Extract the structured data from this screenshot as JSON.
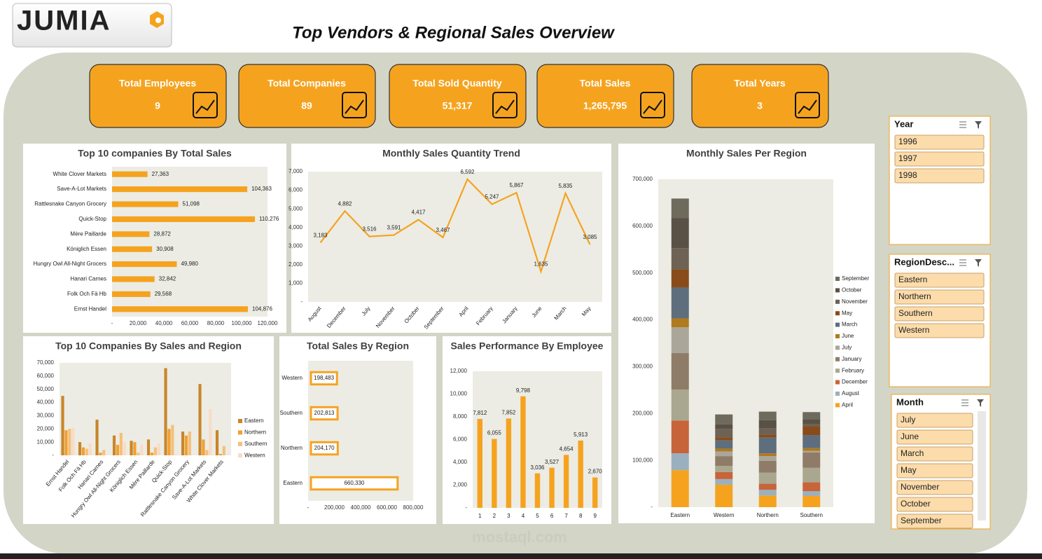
{
  "header": {
    "logo": "JUMIA",
    "title": "Top Vendors & Regional Sales Overview",
    "watermark": "mostaql.com"
  },
  "kpis": [
    {
      "label": "Total Employees",
      "value": "9"
    },
    {
      "label": "Total Companies",
      "value": "89"
    },
    {
      "label": "Total Sold Quantity",
      "value": "51,317"
    },
    {
      "label": "Total  Sales",
      "value": "1,265,795"
    },
    {
      "label": "Total Years",
      "value": "3"
    }
  ],
  "slicers": [
    {
      "title": "Year",
      "items": [
        "1996",
        "1997",
        "1998"
      ]
    },
    {
      "title": "RegionDesc...",
      "items": [
        "Eastern",
        "Northern",
        "Southern",
        "Western"
      ]
    },
    {
      "title": "Month",
      "items": [
        "July",
        "June",
        "March",
        "May",
        "November",
        "October",
        "September"
      ]
    }
  ],
  "chart_data": [
    {
      "type": "bar",
      "orientation": "horizontal",
      "title": "Top 10 companies By Total Sales",
      "color": "#f5a31f",
      "categories": [
        "White Clover Markets",
        "Save-A-Lot Markets",
        "Rattlesnake Canyon Grocery",
        "Quick-Stop",
        "Mère Paillarde",
        "Königlich Essen",
        "Hungry Owl All-Night Grocers",
        "Hanari Carnes",
        "Folk Och Fä Hb",
        "Ernst Handel"
      ],
      "values": [
        27363,
        104363,
        51098,
        110276,
        28872,
        30908,
        49980,
        32842,
        29568,
        104876
      ],
      "value_labels": [
        "27,363",
        "104,363",
        "51,098",
        "110,276",
        "28,872",
        "30,908",
        "49,980",
        "32,842",
        "29,568",
        "104,876"
      ],
      "xlim": [
        0,
        120000
      ],
      "xticks": [
        {
          "value": 0,
          "label": "-"
        },
        {
          "value": 20000,
          "label": "20,000"
        },
        {
          "value": 40000,
          "label": "40,000"
        },
        {
          "value": 60000,
          "label": "60,000"
        },
        {
          "value": 80000,
          "label": "80,000"
        },
        {
          "value": 100000,
          "label": "100,000"
        },
        {
          "value": 120000,
          "label": "120,000"
        }
      ]
    },
    {
      "type": "line",
      "title": "Monthly Sales Quantity Trend",
      "color": "#f5a31f",
      "categories": [
        "August",
        "December",
        "July",
        "November",
        "October",
        "September",
        "April",
        "February",
        "January",
        "June",
        "March",
        "May"
      ],
      "values": [
        3183,
        4882,
        3516,
        3591,
        4417,
        3467,
        6592,
        5247,
        5867,
        1635,
        5835,
        3085
      ],
      "value_labels": [
        "3,183",
        "4,882",
        "3,516",
        "3,591",
        "4,417",
        "3,467",
        "6,592",
        "5,247",
        "5,867",
        "1,635",
        "5,835",
        "3,085"
      ],
      "ylim": [
        0,
        7000
      ],
      "yticks": [
        {
          "value": 0,
          "label": "-"
        },
        {
          "value": 1000,
          "label": "1,000"
        },
        {
          "value": 2000,
          "label": "2,000"
        },
        {
          "value": 3000,
          "label": "3,000"
        },
        {
          "value": 4000,
          "label": "4,000"
        },
        {
          "value": 5000,
          "label": "5,000"
        },
        {
          "value": 6000,
          "label": "6,000"
        },
        {
          "value": 7000,
          "label": "7,000"
        }
      ]
    },
    {
      "type": "bar",
      "stacked": true,
      "title": "Monthly Sales Per Region",
      "legend": "right",
      "categories": [
        "Eastern",
        "Western",
        "Northern",
        "Southern"
      ],
      "series": [
        {
          "name": "April",
          "color": "#f5a31f",
          "values": [
            79000,
            48000,
            25000,
            24000
          ]
        },
        {
          "name": "August",
          "color": "#9bb0be",
          "values": [
            36000,
            12000,
            12000,
            10000
          ]
        },
        {
          "name": "December",
          "color": "#c8643a",
          "values": [
            70000,
            15000,
            13000,
            19000
          ]
        },
        {
          "name": "February",
          "color": "#a9a78f",
          "values": [
            66000,
            13000,
            24000,
            31000
          ]
        },
        {
          "name": "January",
          "color": "#8e7c68",
          "values": [
            78000,
            21000,
            25000,
            33000
          ]
        },
        {
          "name": "July",
          "color": "#aaa69a",
          "values": [
            55000,
            10000,
            10000,
            3000
          ]
        },
        {
          "name": "June",
          "color": "#b07a1e",
          "values": [
            19000,
            6000,
            6000,
            6000
          ]
        },
        {
          "name": "March",
          "color": "#5e6e7c",
          "values": [
            66000,
            18000,
            34000,
            28000
          ]
        },
        {
          "name": "May",
          "color": "#8a4b1a",
          "values": [
            39000,
            6000,
            6000,
            18000
          ]
        },
        {
          "name": "November",
          "color": "#6d6254",
          "values": [
            45000,
            18000,
            13000,
            6000
          ]
        },
        {
          "name": "October",
          "color": "#595146",
          "values": [
            64000,
            10000,
            18000,
            10000
          ]
        },
        {
          "name": "September",
          "color": "#6e6a5c",
          "values": [
            42000,
            21000,
            18000,
            15000
          ]
        }
      ],
      "ylim": [
        0,
        700000
      ],
      "yticks": [
        {
          "value": 0,
          "label": "-"
        },
        {
          "value": 100000,
          "label": "100,000"
        },
        {
          "value": 200000,
          "label": "200,000"
        },
        {
          "value": 300000,
          "label": "300,000"
        },
        {
          "value": 400000,
          "label": "400,000"
        },
        {
          "value": 500000,
          "label": "500,000"
        },
        {
          "value": 600000,
          "label": "600,000"
        },
        {
          "value": 700000,
          "label": "700,000"
        }
      ]
    },
    {
      "type": "bar",
      "title": "Top 10 Companies By Sales and Region",
      "legend": "right",
      "categories": [
        "Ernst Handel",
        "Folk Och Fä Hb",
        "Hanari Carnes",
        "Hungry Owl All-Night Grocers",
        "Königlich Essen",
        "Mère Paillarde",
        "Quick-Stop",
        "Rattlesnake Canyon Grocery",
        "Save-A-Lot Markets",
        "White Clover Markets"
      ],
      "series": [
        {
          "name": "Eastern",
          "color": "#c8862a",
          "values": [
            45000,
            10000,
            27000,
            15000,
            11000,
            12000,
            66000,
            18000,
            54000,
            19000
          ]
        },
        {
          "name": "Northern",
          "color": "#f0a030",
          "values": [
            19000,
            6000,
            2000,
            8000,
            10000,
            2000,
            20000,
            15000,
            12000,
            1000
          ]
        },
        {
          "name": "Southern",
          "color": "#f5c07a",
          "values": [
            20000,
            5000,
            4000,
            17000,
            2000,
            6000,
            23000,
            18000,
            4000,
            7000
          ]
        },
        {
          "name": "Western",
          "color": "#f8dcc6",
          "values": [
            21000,
            9000,
            0,
            10000,
            8000,
            9000,
            1000,
            0,
            35000,
            0
          ]
        }
      ],
      "ylim": [
        0,
        70000
      ],
      "yticks": [
        {
          "value": 0,
          "label": "-"
        },
        {
          "value": 10000,
          "label": "10,000"
        },
        {
          "value": 20000,
          "label": "20,000"
        },
        {
          "value": 30000,
          "label": "30,000"
        },
        {
          "value": 40000,
          "label": "40,000"
        },
        {
          "value": 50000,
          "label": "50,000"
        },
        {
          "value": 60000,
          "label": "60,000"
        },
        {
          "value": 70000,
          "label": "70,000"
        }
      ]
    },
    {
      "type": "bar",
      "orientation": "horizontal",
      "bar_style": "outline",
      "title": "Total Sales By Region",
      "color": "#f5a31f",
      "categories": [
        "Western",
        "Southern",
        "Northern",
        "Eastern"
      ],
      "values": [
        198483,
        202813,
        204170,
        660330
      ],
      "value_labels": [
        "198,483",
        "202,813",
        "204,170",
        "660,330"
      ],
      "xlim": [
        0,
        800000
      ],
      "xticks": [
        {
          "value": 0,
          "label": "-"
        },
        {
          "value": 200000,
          "label": "200,000"
        },
        {
          "value": 400000,
          "label": "400,000"
        },
        {
          "value": 600000,
          "label": "600,000"
        },
        {
          "value": 800000,
          "label": "800,000"
        }
      ]
    },
    {
      "type": "bar",
      "title": "Sales Performance By Employee",
      "color": "#f5a31f",
      "categories": [
        "1",
        "2",
        "3",
        "4",
        "5",
        "6",
        "7",
        "8",
        "9"
      ],
      "values": [
        7812,
        6055,
        7852,
        9798,
        3036,
        3527,
        4654,
        5913,
        2670
      ],
      "value_labels": [
        "7,812",
        "6,055",
        "7,852",
        "9,798",
        "3,036",
        "3,527",
        "4,654",
        "5,913",
        "2,670"
      ],
      "ylim": [
        0,
        12000
      ],
      "yticks": [
        {
          "value": 0,
          "label": "-"
        },
        {
          "value": 2000,
          "label": "2,000"
        },
        {
          "value": 4000,
          "label": "4,000"
        },
        {
          "value": 6000,
          "label": "6,000"
        },
        {
          "value": 8000,
          "label": "8,000"
        },
        {
          "value": 10000,
          "label": "10,000"
        },
        {
          "value": 12000,
          "label": "12,000"
        }
      ]
    }
  ]
}
